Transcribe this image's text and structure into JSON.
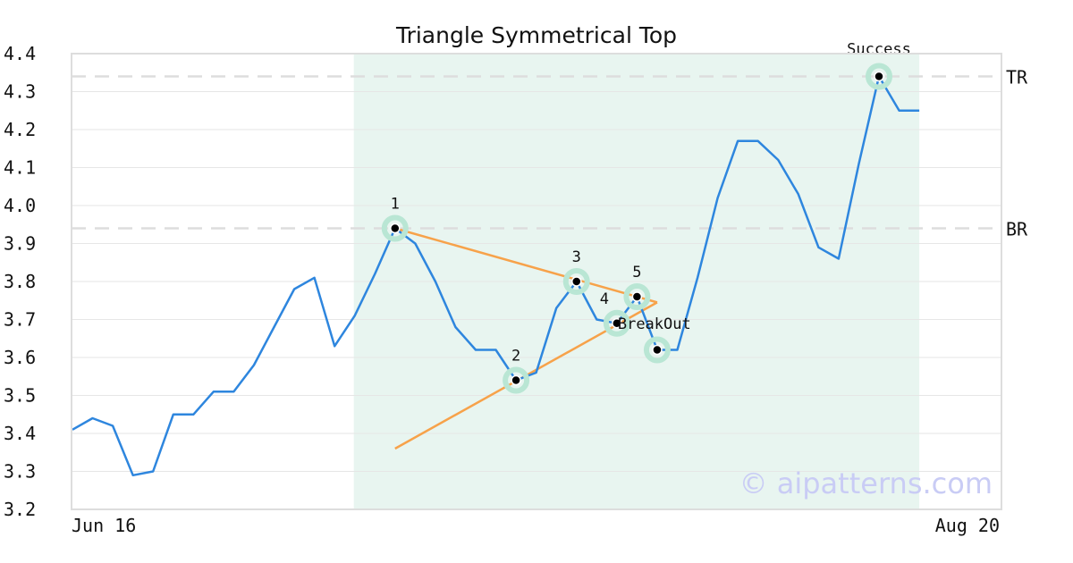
{
  "chart_data": {
    "type": "line",
    "title": "Triangle Symmetrical Top",
    "xlabel": "",
    "ylabel": "",
    "ylim": [
      3.2,
      4.4
    ],
    "yticks": [
      "4.4",
      "4.3",
      "4.2",
      "4.1",
      "4.0",
      "3.9",
      "3.8",
      "3.7",
      "3.6",
      "3.5",
      "3.4",
      "3.3",
      "3.2"
    ],
    "xtick_labels": [
      "Jun 16",
      "Aug 20"
    ],
    "grid": true,
    "watermark": "© aipatterns.com",
    "colors": {
      "price": "#2e86de",
      "trendline": "#f7a24a",
      "highlight": "#e8f5f0",
      "marker_halo": "#b9e6d4",
      "reference": "#dddddd"
    },
    "series": [
      {
        "values": [
          3.41,
          3.44,
          3.42,
          3.29,
          3.3,
          3.45,
          3.45,
          3.51,
          3.51,
          3.58,
          3.68,
          3.78,
          3.81,
          3.63,
          3.71,
          3.82,
          3.94,
          3.9,
          3.8,
          3.68,
          3.62,
          3.62,
          3.54,
          3.56,
          3.73,
          3.8,
          3.7,
          3.69,
          3.76,
          3.62,
          3.62,
          3.81,
          4.02,
          4.17,
          4.17,
          4.12,
          4.03,
          3.89,
          3.86,
          4.11,
          4.34,
          4.25,
          4.25
        ]
      }
    ],
    "highlight_range": {
      "start_index": 14,
      "end_index": 42
    },
    "reference_lines": [
      {
        "label": "TR",
        "value": 4.34
      },
      {
        "label": "BR",
        "value": 3.94
      }
    ],
    "trendlines": [
      {
        "from": {
          "index": 16,
          "value": 3.94
        },
        "to": {
          "index": 29,
          "value": 3.745
        }
      },
      {
        "from": {
          "index": 16,
          "value": 3.36
        },
        "to": {
          "index": 29,
          "value": 3.745
        }
      }
    ],
    "annotations": [
      {
        "label": "1",
        "index": 16,
        "value": 3.94,
        "halo": true,
        "label_pos": "above"
      },
      {
        "label": "2",
        "index": 22,
        "value": 3.54,
        "halo": true,
        "label_pos": "above"
      },
      {
        "label": "3",
        "index": 25,
        "value": 3.8,
        "halo": true,
        "label_pos": "above"
      },
      {
        "label": "4",
        "index": 27,
        "value": 3.69,
        "halo": true,
        "label_pos": "upper-left"
      },
      {
        "label": "5",
        "index": 28,
        "value": 3.76,
        "halo": true,
        "label_pos": "above"
      },
      {
        "label": "",
        "index": 29,
        "value": 3.62,
        "halo": true,
        "label_pos": "none"
      },
      {
        "label": "BreakOut",
        "index": 27,
        "value": 3.69,
        "halo": false,
        "label_pos": "right"
      },
      {
        "label": "Success",
        "index": 40,
        "value": 4.34,
        "halo": true,
        "label_pos": "above"
      }
    ]
  }
}
